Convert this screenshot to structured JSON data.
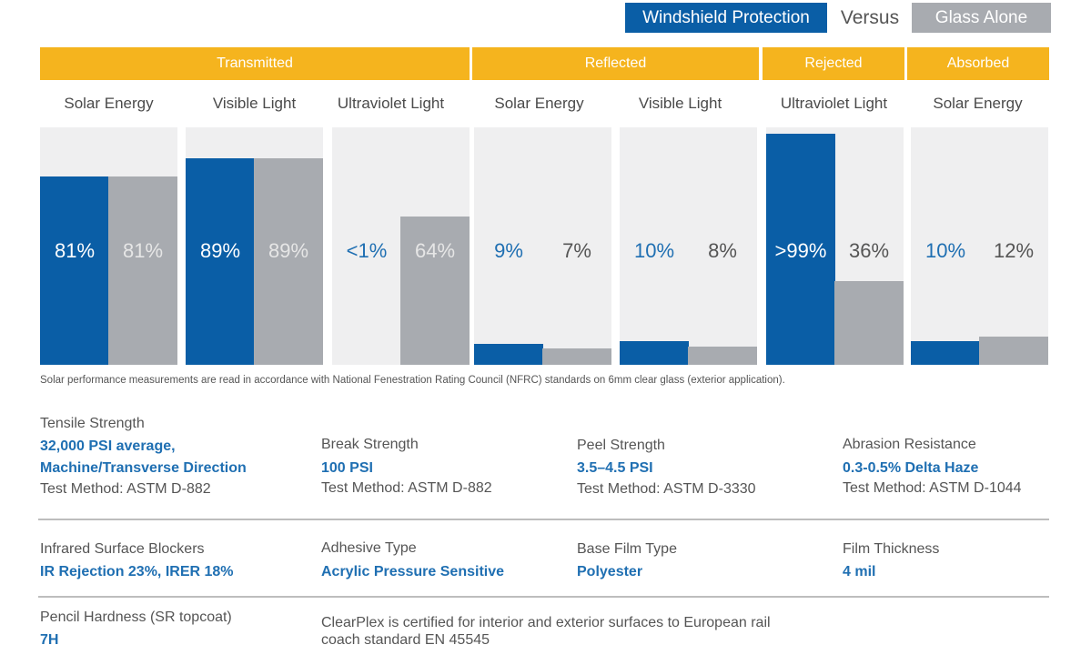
{
  "colors": {
    "primary": "#0a5ea6",
    "secondary": "#a8abb0",
    "header": "#f5b41e",
    "panel": "#efeff0",
    "accent_text": "#1f6fb2"
  },
  "legend": {
    "series_a": "Windshield Protection",
    "versus": "Versus",
    "series_b": "Glass Alone"
  },
  "chart_data": {
    "type": "bar",
    "title": "",
    "xlabel": "",
    "ylabel": "",
    "ylim": [
      0,
      100
    ],
    "grid": false,
    "legend_position": "top-right",
    "groups": [
      {
        "name": "Transmitted",
        "categories": [
          "Solar Energy",
          "Visible Light",
          "Ultraviolet Light"
        ]
      },
      {
        "name": "Reflected",
        "categories": [
          "Solar Energy",
          "Visible Light"
        ]
      },
      {
        "name": "Rejected",
        "categories": [
          "Ultraviolet Light"
        ]
      },
      {
        "name": "Absorbed",
        "categories": [
          "Solar Energy"
        ]
      }
    ],
    "categories": [
      "Solar Energy",
      "Visible Light",
      "Ultraviolet Light",
      "Solar Energy",
      "Visible Light",
      "Ultraviolet Light",
      "Solar Energy"
    ],
    "series": [
      {
        "name": "Windshield Protection",
        "values": [
          81,
          89,
          0.5,
          9,
          10,
          99.5,
          10
        ],
        "labels": [
          "81%",
          "89%",
          "<1%",
          "9%",
          "10%",
          ">99%",
          "10%"
        ]
      },
      {
        "name": "Glass Alone",
        "values": [
          81,
          89,
          64,
          7,
          8,
          36,
          12
        ],
        "labels": [
          "81%",
          "89%",
          "64%",
          "7%",
          "8%",
          "36%",
          "12%"
        ]
      }
    ]
  },
  "footnote": "Solar performance measurements are read in accordance with National Fenestration Rating Council (NFRC) standards on 6mm clear glass (exterior application).",
  "specs": {
    "tensile": {
      "label": "Tensile Strength",
      "value_line1": "32,000 PSI average,",
      "value_line2": "Machine/Transverse Direction",
      "method": "Test Method: ASTM D-882"
    },
    "break": {
      "label": "Break Strength",
      "value": "100 PSI",
      "method": "Test Method: ASTM D-882"
    },
    "peel": {
      "label": "Peel Strength",
      "value": "3.5–4.5 PSI",
      "method": "Test Method: ASTM D-3330"
    },
    "abrasion": {
      "label": "Abrasion Resistance",
      "value": "0.3-0.5% Delta Haze",
      "method": "Test Method: ASTM D-1044"
    },
    "infrared": {
      "label": "Infrared Surface Blockers",
      "value": "IR Rejection 23%, IRER 18%"
    },
    "adhesive": {
      "label": "Adhesive Type",
      "value": "Acrylic Pressure Sensitive"
    },
    "base_film": {
      "label": "Base Film Type",
      "value": "Polyester"
    },
    "thickness": {
      "label": "Film Thickness",
      "value": "4 mil"
    },
    "pencil": {
      "label": "Pencil Hardness (SR topcoat)",
      "value": "7H"
    },
    "certification_line1": "ClearPlex is certified for interior and exterior surfaces to European rail",
    "certification_line2": "coach standard EN 45545"
  }
}
